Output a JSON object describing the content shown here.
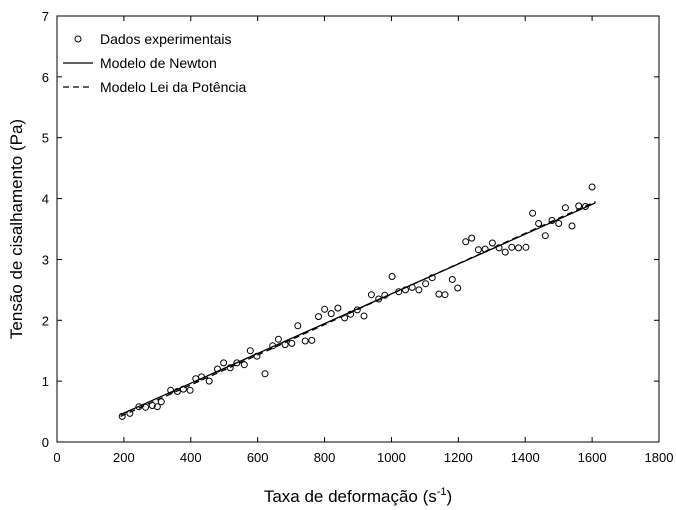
{
  "chart_data": {
    "type": "scatter",
    "title": "",
    "xlabel": "Taxa de deformação (s",
    "xlabel_sup": "-1",
    "xlabel_end": ")",
    "ylabel": "Tensão de cisalhamento (Pa)",
    "xlim": [
      0,
      1800
    ],
    "ylim": [
      0,
      7
    ],
    "x_ticks": [
      "0",
      "200",
      "400",
      "600",
      "800",
      "1000",
      "1200",
      "1400",
      "1600",
      "1800"
    ],
    "y_ticks": [
      "0",
      "1",
      "2",
      "3",
      "4",
      "5",
      "6",
      "7"
    ],
    "grid": false,
    "legend_position": "top-left",
    "legend": [
      {
        "label": "Dados experimentais",
        "style": "circle-marker"
      },
      {
        "label": "Modelo de Newton",
        "style": "solid-line"
      },
      {
        "label": "Modelo Lei da Potência",
        "style": "dashed-line"
      }
    ],
    "series": [
      {
        "name": "Dados experimentais",
        "kind": "points",
        "points": [
          [
            195,
            0.42
          ],
          [
            218,
            0.47
          ],
          [
            245,
            0.58
          ],
          [
            265,
            0.57
          ],
          [
            285,
            0.6
          ],
          [
            300,
            0.58
          ],
          [
            312,
            0.66
          ],
          [
            340,
            0.85
          ],
          [
            360,
            0.83
          ],
          [
            378,
            0.87
          ],
          [
            398,
            0.85
          ],
          [
            415,
            1.04
          ],
          [
            432,
            1.07
          ],
          [
            455,
            1.0
          ],
          [
            480,
            1.2
          ],
          [
            498,
            1.3
          ],
          [
            518,
            1.22
          ],
          [
            538,
            1.3
          ],
          [
            560,
            1.27
          ],
          [
            578,
            1.5
          ],
          [
            598,
            1.41
          ],
          [
            622,
            1.12
          ],
          [
            645,
            1.58
          ],
          [
            662,
            1.69
          ],
          [
            682,
            1.6
          ],
          [
            702,
            1.62
          ],
          [
            720,
            1.91
          ],
          [
            742,
            1.66
          ],
          [
            762,
            1.67
          ],
          [
            782,
            2.06
          ],
          [
            800,
            2.18
          ],
          [
            820,
            2.11
          ],
          [
            840,
            2.2
          ],
          [
            860,
            2.04
          ],
          [
            878,
            2.1
          ],
          [
            898,
            2.17
          ],
          [
            918,
            2.07
          ],
          [
            940,
            2.42
          ],
          [
            962,
            2.35
          ],
          [
            980,
            2.41
          ],
          [
            1002,
            2.72
          ],
          [
            1022,
            2.47
          ],
          [
            1042,
            2.5
          ],
          [
            1062,
            2.54
          ],
          [
            1082,
            2.5
          ],
          [
            1102,
            2.6
          ],
          [
            1122,
            2.7
          ],
          [
            1142,
            2.43
          ],
          [
            1160,
            2.42
          ],
          [
            1182,
            2.67
          ],
          [
            1198,
            2.53
          ],
          [
            1222,
            3.29
          ],
          [
            1240,
            3.35
          ],
          [
            1260,
            3.16
          ],
          [
            1280,
            3.17
          ],
          [
            1302,
            3.27
          ],
          [
            1322,
            3.19
          ],
          [
            1340,
            3.12
          ],
          [
            1360,
            3.2
          ],
          [
            1380,
            3.19
          ],
          [
            1402,
            3.2
          ],
          [
            1422,
            3.76
          ],
          [
            1440,
            3.59
          ],
          [
            1460,
            3.39
          ],
          [
            1480,
            3.64
          ],
          [
            1500,
            3.59
          ],
          [
            1520,
            3.85
          ],
          [
            1540,
            3.55
          ],
          [
            1560,
            3.88
          ],
          [
            1580,
            3.87
          ],
          [
            1600,
            4.19
          ]
        ]
      },
      {
        "name": "Modelo de Newton",
        "kind": "line",
        "dash": "",
        "points": [
          [
            190,
            0.45
          ],
          [
            1610,
            3.93
          ]
        ]
      },
      {
        "name": "Modelo Lei da Potência",
        "kind": "line",
        "dash": "6,4",
        "points": [
          [
            190,
            0.42
          ],
          [
            600,
            1.43
          ],
          [
            1000,
            2.43
          ],
          [
            1400,
            3.43
          ],
          [
            1610,
            3.95
          ]
        ]
      }
    ]
  }
}
